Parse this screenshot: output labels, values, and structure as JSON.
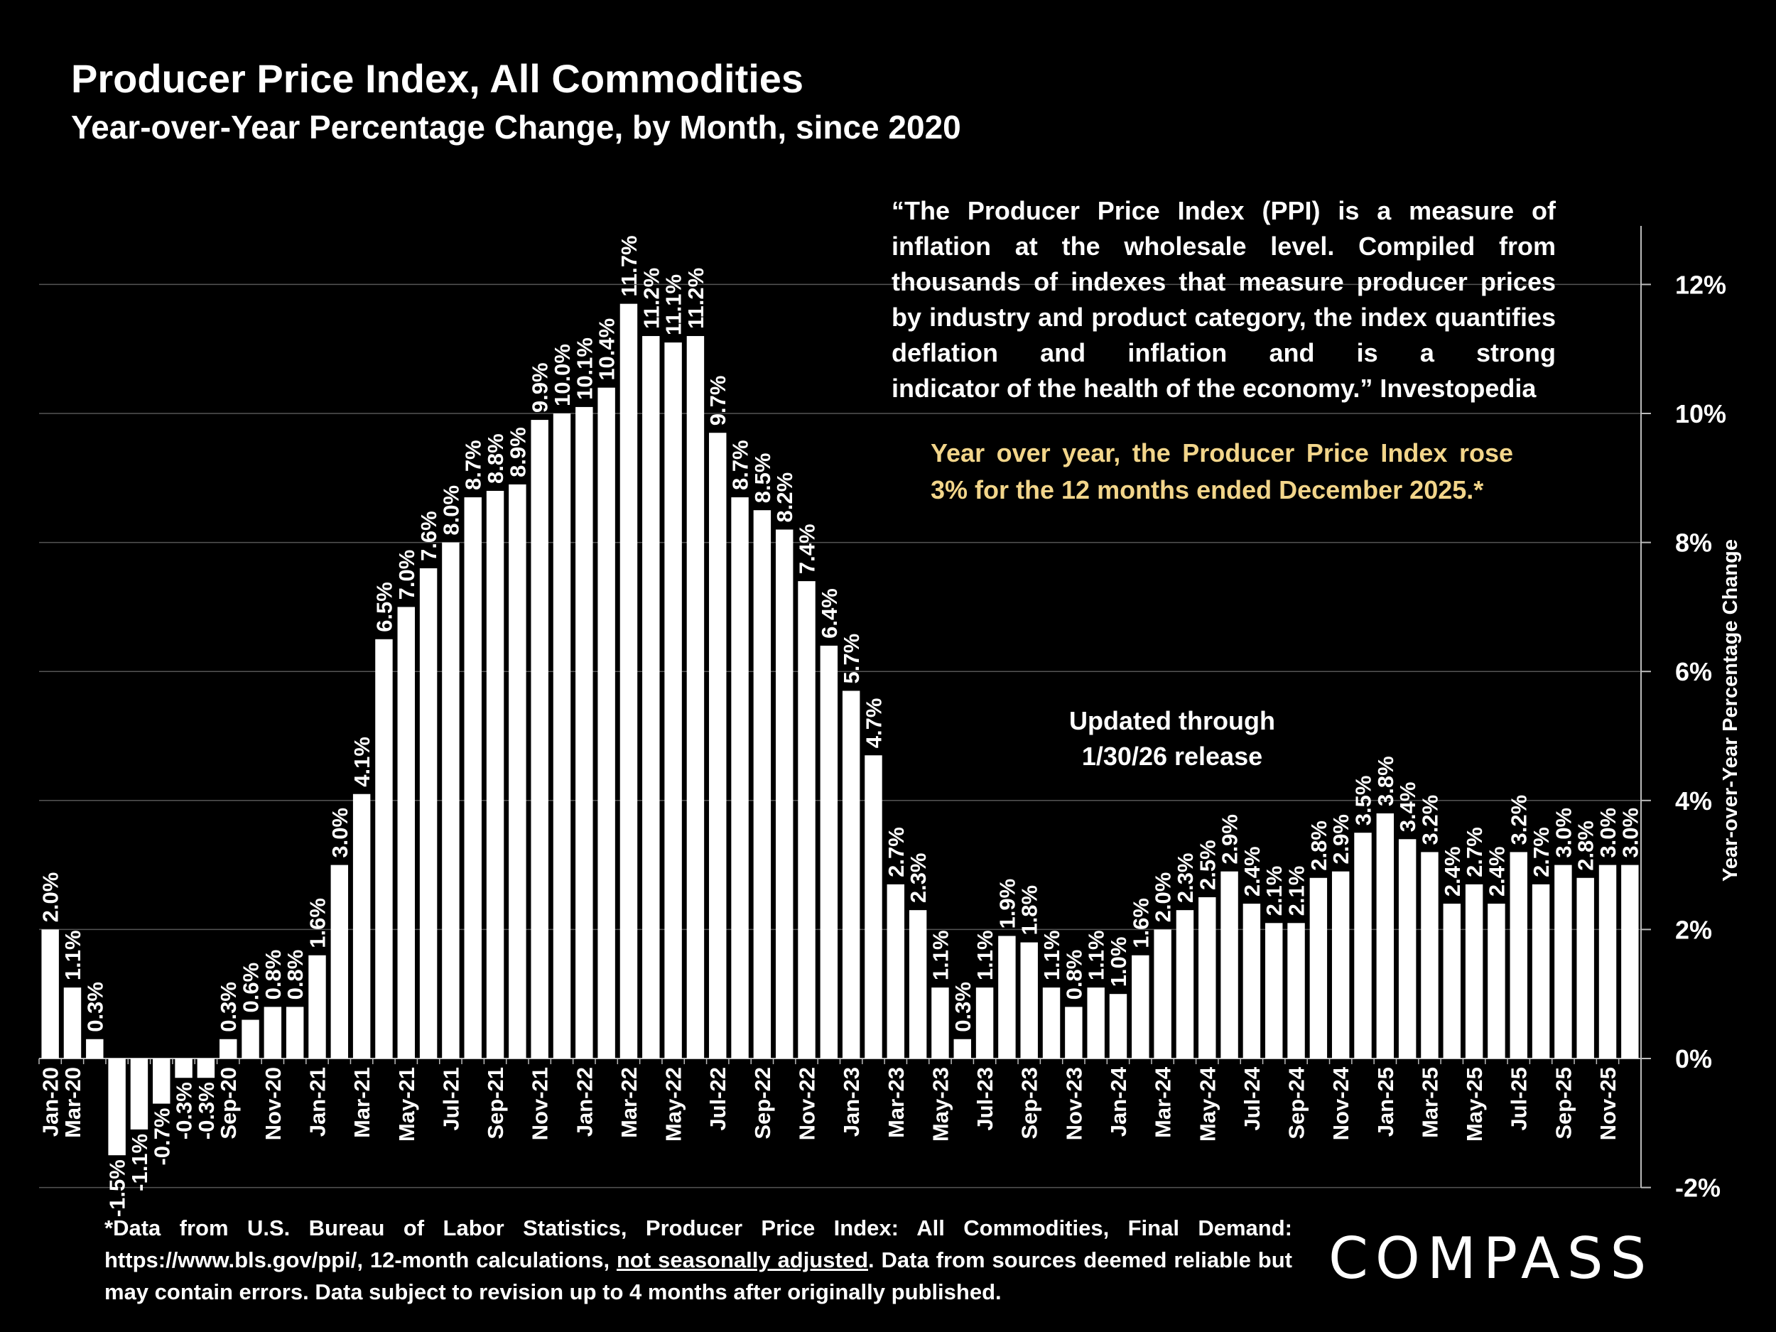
{
  "header": {
    "title": "Producer Price Index, All Commodities",
    "subtitle": "Year-over-Year Percentage Change, by Month, since 2020"
  },
  "quote": {
    "line1": "“The Producer Price Index (PPI) is a measure of inflation at the wholesale level. Compiled from thousands of indexes that measure producer prices by industry and product category, the index quantifies deflation and inflation and is a strong",
    "line2": "indicator of the health of the economy.” Investopedia"
  },
  "highlight": "Year over year, the Producer Price Index rose 3% for the 12 months ended December 2025.*",
  "updated_note": {
    "line1": "Updated through",
    "line2": "1/30/26 release"
  },
  "footnote": {
    "part1": "*Data from U.S. Bureau of Labor Statistics, Producer Price Index: All Commodities, Final Demand: https://www.bls.gov/ppi/, 12-month calculations, ",
    "underlined": "not seasonally adjusted",
    "part2": ". Data from sources deemed reliable but may contain errors. Data subject to revision up to 4 months after originally published."
  },
  "logo": "COMPASS",
  "colors": {
    "background": "#000000",
    "bar": "#ffffff",
    "text": "#ffffff",
    "highlight": "#f2d58a",
    "gridline": "#555555"
  },
  "chart_data": {
    "type": "bar",
    "ylabel": "Year-over-Year Percentage Change",
    "ylim": [
      -2,
      12.8
    ],
    "yticks": [
      -2,
      0,
      2,
      4,
      6,
      8,
      10,
      12
    ],
    "ytick_labels": [
      "-2%",
      "0%",
      "2%",
      "4%",
      "6%",
      "8%",
      "10%",
      "12%"
    ],
    "y_axis_position": "right",
    "grid": true,
    "categories": [
      "Jan-20",
      "Feb-20",
      "Mar-20",
      "Apr-20",
      "May-20",
      "Jun-20",
      "Jul-20",
      "Aug-20",
      "Sep-20",
      "Oct-20",
      "Nov-20",
      "Dec-20",
      "Jan-21",
      "Feb-21",
      "Mar-21",
      "Apr-21",
      "May-21",
      "Jun-21",
      "Jul-21",
      "Aug-21",
      "Sep-21",
      "Oct-21",
      "Nov-21",
      "Dec-21",
      "Jan-22",
      "Feb-22",
      "Mar-22",
      "Apr-22",
      "May-22",
      "Jun-22",
      "Jul-22",
      "Aug-22",
      "Sep-22",
      "Oct-22",
      "Nov-22",
      "Dec-22",
      "Jan-23",
      "Feb-23",
      "Mar-23",
      "Apr-23",
      "May-23",
      "Jun-23",
      "Jul-23",
      "Aug-23",
      "Sep-23",
      "Oct-23",
      "Nov-23",
      "Dec-23",
      "Jan-24",
      "Feb-24",
      "Mar-24",
      "Apr-24",
      "May-24",
      "Jun-24",
      "Jul-24",
      "Aug-24",
      "Sep-24",
      "Oct-24",
      "Nov-24",
      "Dec-24",
      "Jan-25",
      "Feb-25",
      "Mar-25",
      "Apr-25",
      "May-25",
      "Jun-25",
      "Jul-25",
      "Aug-25",
      "Sep-25",
      "Oct-25",
      "Nov-25",
      "Dec-25"
    ],
    "tick_labels_shown": [
      "Jan-20",
      "Mar-20",
      "",
      "",
      "",
      "",
      "",
      "",
      "Sep-20",
      "",
      "Nov-20",
      "",
      "Jan-21",
      "",
      "Mar-21",
      "",
      "May-21",
      "",
      "Jul-21",
      "",
      "Sep-21",
      "",
      "Nov-21",
      "",
      "Jan-22",
      "",
      "Mar-22",
      "",
      "May-22",
      "",
      "Jul-22",
      "",
      "Sep-22",
      "",
      "Nov-22",
      "",
      "Jan-23",
      "",
      "Mar-23",
      "",
      "May-23",
      "",
      "Jul-23",
      "",
      "Sep-23",
      "",
      "Nov-23",
      "",
      "Jan-24",
      "",
      "Mar-24",
      "",
      "May-24",
      "",
      "Jul-24",
      "",
      "Sep-24",
      "",
      "Nov-24",
      "",
      "Jan-25",
      "",
      "Mar-25",
      "",
      "May-25",
      "",
      "Jul-25",
      "",
      "Sep-25",
      "",
      "Nov-25",
      ""
    ],
    "values": [
      2.0,
      1.1,
      0.3,
      -1.5,
      -1.1,
      -0.7,
      -0.3,
      -0.3,
      0.3,
      0.6,
      0.8,
      0.8,
      1.6,
      3.0,
      4.1,
      6.5,
      7.0,
      7.6,
      8.0,
      8.7,
      8.8,
      8.9,
      9.9,
      10.0,
      10.1,
      10.4,
      11.7,
      11.2,
      11.1,
      11.2,
      9.7,
      8.7,
      8.5,
      8.2,
      7.4,
      6.4,
      5.7,
      4.7,
      2.7,
      2.3,
      1.1,
      0.3,
      1.1,
      1.9,
      1.8,
      1.1,
      0.8,
      1.1,
      1.0,
      1.6,
      2.0,
      2.3,
      2.5,
      2.9,
      2.4,
      2.1,
      2.1,
      2.8,
      2.9,
      3.5,
      3.8,
      3.4,
      3.2,
      2.4,
      2.7,
      2.4,
      3.2,
      2.7,
      3.0,
      2.8,
      3.0,
      3.0
    ],
    "data_labels": [
      "2.0%",
      "1.1%",
      "0.3%",
      "-1.5%",
      "-1.1%",
      "-0.7%",
      "-0.3%",
      "-0.3%",
      "0.3%",
      "0.6%",
      "0.8%",
      "0.8%",
      "1.6%",
      "3.0%",
      "4.1%",
      "6.5%",
      "7.0%",
      "7.6%",
      "8.0%",
      "8.7%",
      "8.8%",
      "8.9%",
      "9.9%",
      "10.0%",
      "10.1%",
      "10.4%",
      "11.7%",
      "11.2%",
      "11.1%",
      "11.2%",
      "9.7%",
      "8.7%",
      "8.5%",
      "8.2%",
      "7.4%",
      "6.4%",
      "5.7%",
      "4.7%",
      "2.7%",
      "2.3%",
      "1.1%",
      "0.3%",
      "1.1%",
      "1.9%",
      "1.8%",
      "1.1%",
      "0.8%",
      "1.1%",
      "1.0%",
      "1.6%",
      "2.0%",
      "2.3%",
      "2.5%",
      "2.9%",
      "2.4%",
      "2.1%",
      "2.1%",
      "2.8%",
      "2.9%",
      "3.5%",
      "3.8%",
      "3.4%",
      "3.2%",
      "2.4%",
      "2.7%",
      "2.4%",
      "3.2%",
      "2.7%",
      "3.0%",
      "2.8%",
      "3.0%",
      "3.0%"
    ]
  }
}
